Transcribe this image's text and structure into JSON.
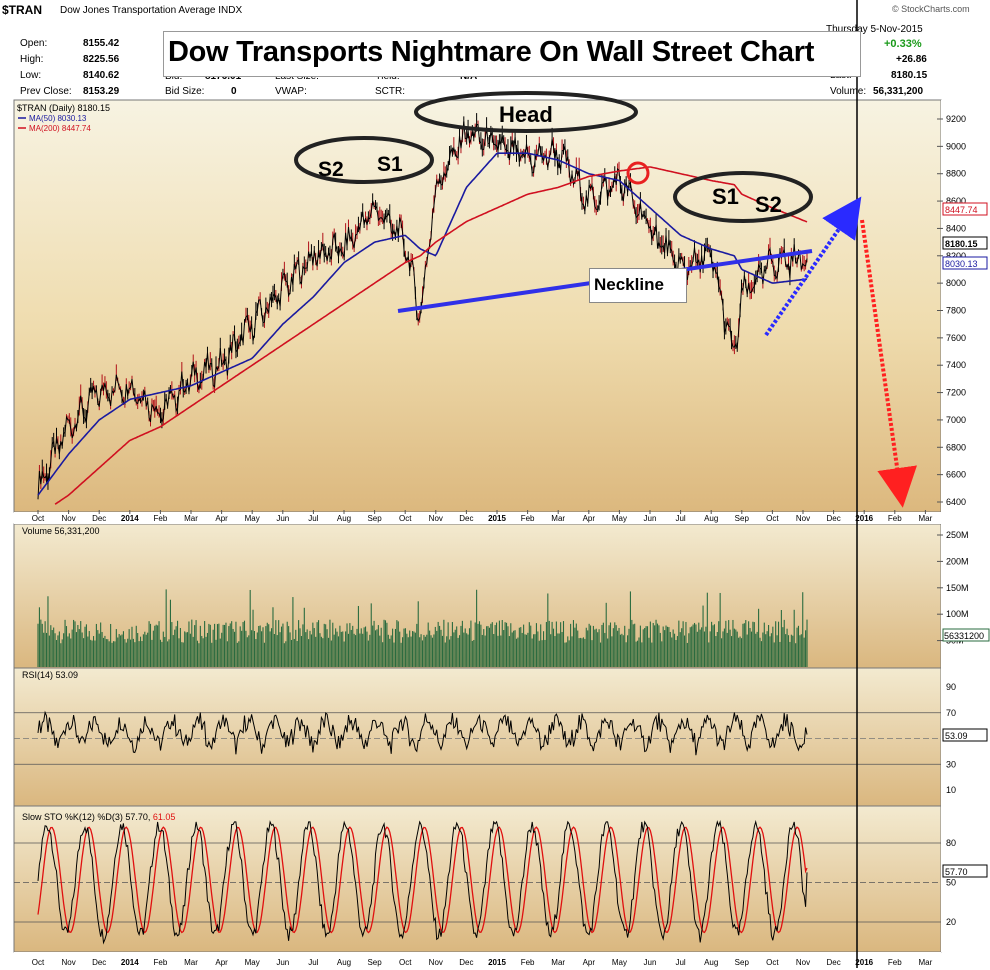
{
  "ticker": "$TRAN",
  "name": "Dow Jones Transportation Average",
  "exchange": "INDX",
  "brand": "© StockCharts.com",
  "date": "Thursday  5-Nov-2015",
  "title_banner": "Dow Transports Nightmare On Wall Street Chart",
  "quote": {
    "open_label": "Open:",
    "open": "8155.42",
    "high_label": "High:",
    "high": "8225.56",
    "low_label": "Low:",
    "low": "8140.62",
    "prevclose_label": "Prev Close:",
    "prevclose": "8153.29",
    "bid_label": "Bid:",
    "bid": "8176.01",
    "bidsize_label": "Bid Size:",
    "bidsize": "0",
    "lastsize_label": "Last Size:",
    "vwap_label": "VWAP:",
    "yield_label": "Yield:",
    "yield": "N/A",
    "sctr_label": "SCTR:",
    "change_pct": "+0.33%",
    "change": "+26.86",
    "last_label": "Last:",
    "last": "8180.15",
    "volume_label": "Volume:",
    "volume": "56,331,200"
  },
  "price_panel": {
    "legend_main": "$TRAN (Daily) 8180.15",
    "legend_ma50": "MA(50) 8030.13",
    "legend_ma200": "MA(200) 8447.74",
    "y_ticks": [
      "9200",
      "9000",
      "8800",
      "8600",
      "8400",
      "8200",
      "8000",
      "7800",
      "7600",
      "7400",
      "7200",
      "7000",
      "6800",
      "6600",
      "6400"
    ],
    "price_tag_ma200": "8447.74",
    "price_tag_last": "8180.15",
    "price_tag_ma50": "8030.13",
    "annotations": {
      "head": "Head",
      "left_s2": "S2",
      "left_s1": "S1",
      "right_s1": "S1",
      "right_s2": "S2",
      "neckline": "Neckline"
    }
  },
  "volume_panel": {
    "legend": "Volume 56,331,200",
    "y_ticks": [
      "250M",
      "200M",
      "150M",
      "100M",
      "50M"
    ],
    "value_tag": "56331200"
  },
  "rsi_panel": {
    "legend": "RSI(14) 53.09",
    "y_ticks": [
      "90",
      "70",
      "50",
      "30",
      "10"
    ],
    "value_tag": "53.09"
  },
  "sto_panel": {
    "legend_a": "Slow STO %K(12) %D(3) 57.70, ",
    "legend_b": "61.05",
    "y_ticks": [
      "80",
      "50",
      "20"
    ],
    "value_tag": "57.70"
  },
  "x_axis_labels": [
    "Oct",
    "Nov",
    "Dec",
    "2014",
    "Feb",
    "Mar",
    "Apr",
    "May",
    "Jun",
    "Jul",
    "Aug",
    "Sep",
    "Oct",
    "Nov",
    "Dec",
    "2015",
    "Feb",
    "Mar",
    "Apr",
    "May",
    "Jun",
    "Jul",
    "Aug",
    "Sep",
    "Oct",
    "Nov",
    "Dec",
    "2016",
    "Feb",
    "Mar"
  ],
  "colors": {
    "panel_bg_top": "#f6f1dc",
    "panel_bg_bottom": "#d8b67c",
    "price_line": "#000000",
    "ma50": "#1a1aa0",
    "ma200": "#d01020",
    "volume_bar": "#2a6b3f",
    "rsi": "#000000",
    "sto_k": "#000000",
    "sto_d": "#e01010",
    "neckline": "#3030e8",
    "arrow_up": "#2a2aff",
    "arrow_down": "#ff2020",
    "target_circle": "#e82020",
    "ellipse": "#222222"
  },
  "chart_data": {
    "type": "line",
    "title": "Dow Transports Nightmare On Wall Street Chart",
    "xlabel": "",
    "ylabel": "",
    "ylim": [
      6350,
      9320
    ],
    "x": [
      "2013-10-01",
      "2013-11-01",
      "2013-12-01",
      "2014-01-01",
      "2014-02-01",
      "2014-03-01",
      "2014-04-01",
      "2014-05-01",
      "2014-06-01",
      "2014-07-01",
      "2014-08-01",
      "2014-09-01",
      "2014-10-01",
      "2014-10-16",
      "2014-11-01",
      "2014-12-01",
      "2015-01-01",
      "2015-02-01",
      "2015-03-01",
      "2015-04-01",
      "2015-05-01",
      "2015-06-01",
      "2015-07-01",
      "2015-08-01",
      "2015-08-24",
      "2015-09-01",
      "2015-10-01",
      "2015-11-05"
    ],
    "series": [
      {
        "name": "$TRAN (Daily)",
        "values": [
          6500,
          6950,
          7200,
          7250,
          7050,
          7300,
          7400,
          7700,
          7950,
          8200,
          8250,
          8550,
          8300,
          7750,
          8700,
          9100,
          9000,
          8900,
          8950,
          8600,
          8750,
          8400,
          8100,
          8200,
          7450,
          7900,
          8150,
          8180
        ]
      },
      {
        "name": "MA(50)",
        "values": [
          6450,
          6750,
          7000,
          7150,
          7200,
          7250,
          7350,
          7450,
          7700,
          7900,
          8150,
          8300,
          8350,
          8250,
          8200,
          8700,
          8950,
          8950,
          8900,
          8800,
          8750,
          8550,
          8350,
          8250,
          8200,
          8100,
          8000,
          8030
        ]
      },
      {
        "name": "MA(200)",
        "values": [
          6300,
          6450,
          6650,
          6850,
          6950,
          7100,
          7250,
          7400,
          7550,
          7700,
          7850,
          8000,
          8150,
          8200,
          8300,
          8450,
          8550,
          8650,
          8700,
          8780,
          8820,
          8850,
          8800,
          8750,
          8720,
          8650,
          8550,
          8447.74
        ]
      }
    ]
  }
}
